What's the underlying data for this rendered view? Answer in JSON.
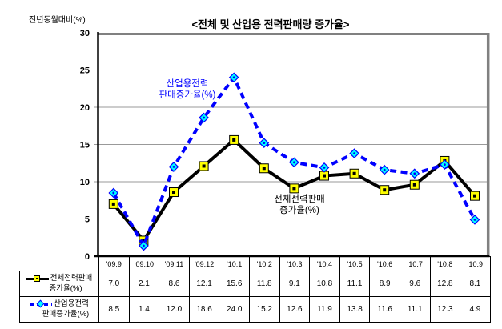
{
  "chart": {
    "title": "<전체 및 산업용 전력판매량 증가율>",
    "y_axis_label": "전년동월대비(%)"
  },
  "chart_data": {
    "type": "line",
    "title": "<전체 및 산업용 전력판매량 증가율>",
    "ylabel": "전년동월대비(%)",
    "ylim": [
      0,
      30
    ],
    "y_ticks": [
      0,
      5,
      10,
      15,
      20,
      25,
      30
    ],
    "grid": true,
    "legend_position": "table-left",
    "categories": [
      "'09.9",
      "'09.10",
      "'09.11",
      "'09.12",
      "'10.1",
      "'10.2",
      "'10.3",
      "'10.4",
      "'10.5",
      "'10.6",
      "'10.7",
      "'10.8",
      "'10.9"
    ],
    "series": [
      {
        "name": "전체전력판매 증가율(%)",
        "name_lines": [
          "전체전력판매",
          "증가율(%)"
        ],
        "values": [
          7.0,
          2.1,
          8.6,
          12.1,
          15.6,
          11.8,
          9.1,
          10.8,
          11.1,
          8.9,
          9.6,
          12.8,
          8.1
        ],
        "color": "#000000",
        "line_style": "solid",
        "marker": "square",
        "marker_fill": "#FFFF00"
      },
      {
        "name": "산업용전력 판매증가율(%)",
        "name_lines": [
          "산업용전력",
          "판매증가율(%)"
        ],
        "values": [
          8.5,
          1.4,
          12.0,
          18.6,
          24.0,
          15.2,
          12.6,
          11.9,
          13.8,
          11.6,
          11.1,
          12.3,
          4.9
        ],
        "color": "#0000FF",
        "line_style": "dashed",
        "marker": "diamond",
        "marker_fill": "#00FFFF"
      }
    ],
    "annotations": [
      {
        "lines": [
          "산업용전력",
          "판매증가율(%)"
        ],
        "color": "#0000FF"
      },
      {
        "lines": [
          "전체전력판매",
          "증가율(%)"
        ],
        "color": "#000000"
      }
    ],
    "colors": {
      "grid": "#999999",
      "plot_border": "#808080",
      "axis": "#000000"
    }
  }
}
